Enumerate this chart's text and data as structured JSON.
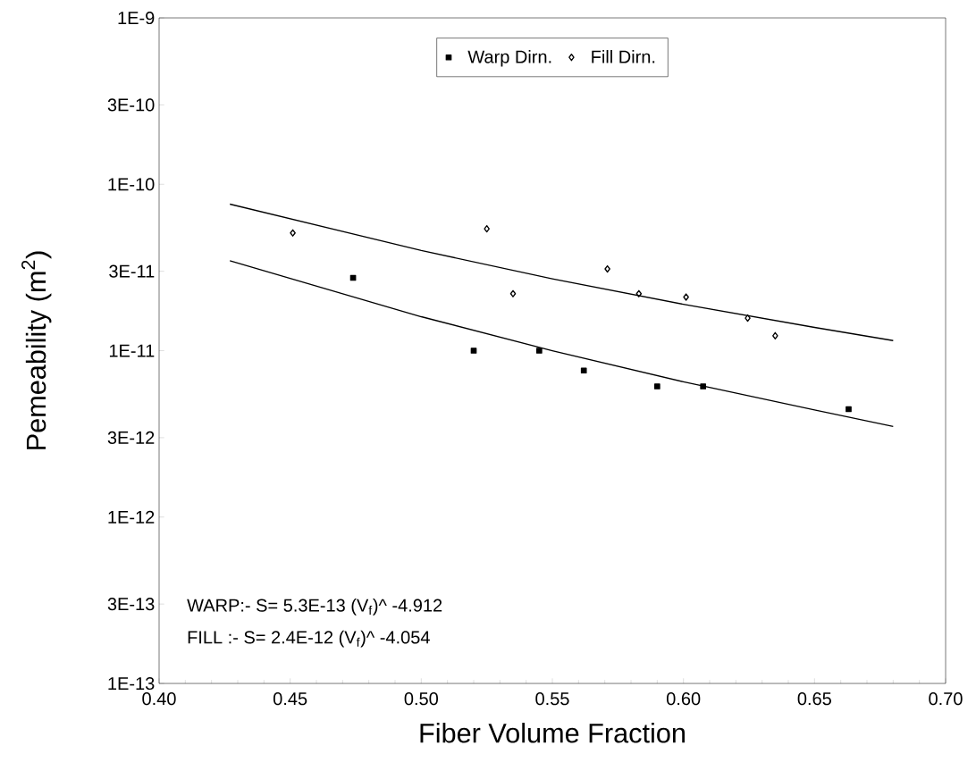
{
  "chart_data": {
    "type": "scatter",
    "xlabel": "Fiber Volume Fraction",
    "ylabel": "Pemeability (m$^{2}$)",
    "xlim": [
      0.4,
      0.7
    ],
    "xticks": [
      {
        "value": 0.4,
        "label": "0.40"
      },
      {
        "value": 0.45,
        "label": "0.45"
      },
      {
        "value": 0.5,
        "label": "0.50"
      },
      {
        "value": 0.55,
        "label": "0.55"
      },
      {
        "value": 0.6,
        "label": "0.60"
      },
      {
        "value": 0.65,
        "label": "0.65"
      },
      {
        "value": 0.7,
        "label": "0.70"
      }
    ],
    "ylim": [
      1e-13,
      1e-09
    ],
    "yticks": [
      {
        "value": 1e-13,
        "label": "1E-13"
      },
      {
        "value": 3e-13,
        "label": "3E-13"
      },
      {
        "value": 1e-12,
        "label": "1E-12"
      },
      {
        "value": 3e-12,
        "label": "3E-12"
      },
      {
        "value": 1e-11,
        "label": "1E-11"
      },
      {
        "value": 3e-11,
        "label": "3E-11"
      },
      {
        "value": 1e-10,
        "label": "1E-10"
      },
      {
        "value": 3e-10,
        "label": "3E-10"
      },
      {
        "value": 1e-09,
        "label": "1E-9"
      }
    ],
    "log": "y",
    "grid": false,
    "legend": "top",
    "series": [
      {
        "name": "Warp Dirn.",
        "marker": "square",
        "color": "#000000",
        "x": [
          0.474,
          0.52,
          0.545,
          0.562,
          0.59,
          0.6075,
          0.663
        ],
        "values": [
          2.74e-11,
          1e-11,
          1e-11,
          7.6e-12,
          6.1e-12,
          6.1e-12,
          4.45e-12
        ]
      },
      {
        "name": "Fill Dirn.",
        "marker": "diamond",
        "color": "#000000",
        "x": [
          0.451,
          0.525,
          0.535,
          0.571,
          0.583,
          0.601,
          0.6245,
          0.635
        ],
        "values": [
          5.1e-11,
          5.4e-11,
          2.2e-11,
          3.1e-11,
          2.2e-11,
          2.1e-11,
          1.57e-11,
          1.23e-11
        ]
      },
      {
        "type": "line",
        "marker": "none",
        "color": "#000000",
        "x": [
          0.427,
          0.5,
          0.55,
          0.6,
          0.65,
          0.68
        ],
        "values": [
          3.47e-11,
          1.6e-11,
          1e-11,
          6.5e-12,
          4.4e-12,
          3.5e-12
        ]
      },
      {
        "type": "line",
        "marker": "none",
        "color": "#000000",
        "x": [
          0.427,
          0.5,
          0.55,
          0.6,
          0.65,
          0.68
        ],
        "values": [
          7.6e-11,
          4e-11,
          2.7e-11,
          1.9e-11,
          1.38e-11,
          1.15e-11
        ]
      }
    ],
    "annotations": [
      "WARP:-  S= 5.3E-13 (V$_{f}$)^ -4.912",
      "FILL :-   S= 2.4E-12 (V$_{f}$)^ -4.054"
    ]
  }
}
